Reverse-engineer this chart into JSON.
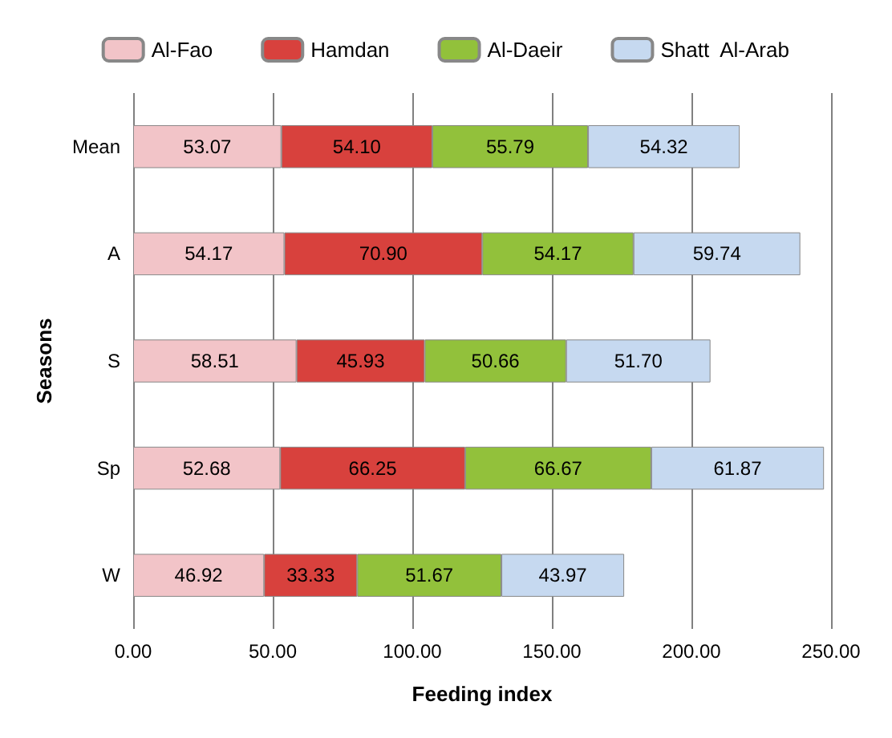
{
  "chart_data": {
    "type": "bar",
    "orientation": "horizontal",
    "stacked": true,
    "xlabel": "Feeding index",
    "ylabel": "Seasons",
    "categories": [
      "Mean",
      "A",
      "S",
      "Sp",
      "W"
    ],
    "series": [
      {
        "name": "Al-Fao",
        "color": "#f2c4c8",
        "values": [
          53.07,
          54.17,
          58.51,
          52.68,
          46.92
        ],
        "value_labels": [
          "53.07",
          "54.17",
          "58.51",
          "52.68",
          "46.92"
        ]
      },
      {
        "name": "Hamdan",
        "color": "#d8413d",
        "values": [
          54.1,
          70.9,
          45.93,
          66.25,
          33.33
        ],
        "value_labels": [
          "54.10",
          "70.90",
          "45.93",
          "66.25",
          "33.33"
        ]
      },
      {
        "name": "Al-Daeir",
        "color": "#92c13b",
        "values": [
          55.79,
          54.17,
          50.66,
          66.67,
          51.67
        ],
        "value_labels": [
          "55.79",
          "54.17",
          "50.66",
          "66.67",
          "51.67"
        ]
      },
      {
        "name": "Shatt  Al-Arab",
        "color": "#c6d9f0",
        "values": [
          54.32,
          59.74,
          51.7,
          61.87,
          43.97
        ],
        "value_labels": [
          "54.32",
          "59.74",
          "51.70",
          "61.87",
          "43.97"
        ]
      }
    ],
    "xlim": [
      0,
      250
    ],
    "xticks": [
      {
        "value": 0,
        "label": "0.00"
      },
      {
        "value": 50,
        "label": "50.00"
      },
      {
        "value": 100,
        "label": "100.00"
      },
      {
        "value": 150,
        "label": "150.00"
      },
      {
        "value": 200,
        "label": "200.00"
      },
      {
        "value": 250,
        "label": "250.00"
      }
    ],
    "grid": "x",
    "legend": "top"
  }
}
